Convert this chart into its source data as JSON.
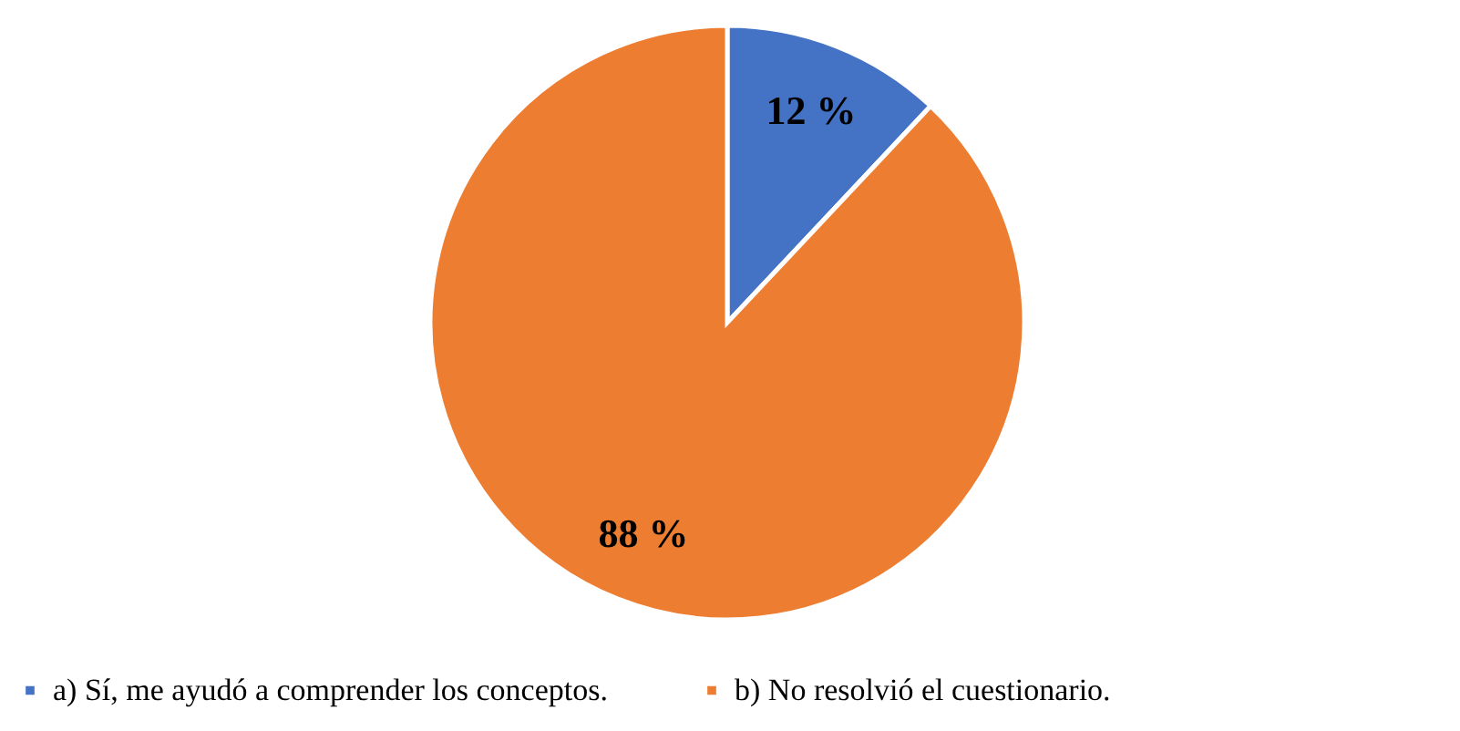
{
  "chart_data": {
    "type": "pie",
    "categories": [
      "a) Sí, me ayudó a comprender los conceptos.",
      "b) No resolvió el cuestionario."
    ],
    "values": [
      12,
      88
    ],
    "colors": [
      "#4472c4",
      "#ed7d31"
    ],
    "value_labels": [
      "12 %",
      "88 %"
    ],
    "legend": "bottom"
  }
}
